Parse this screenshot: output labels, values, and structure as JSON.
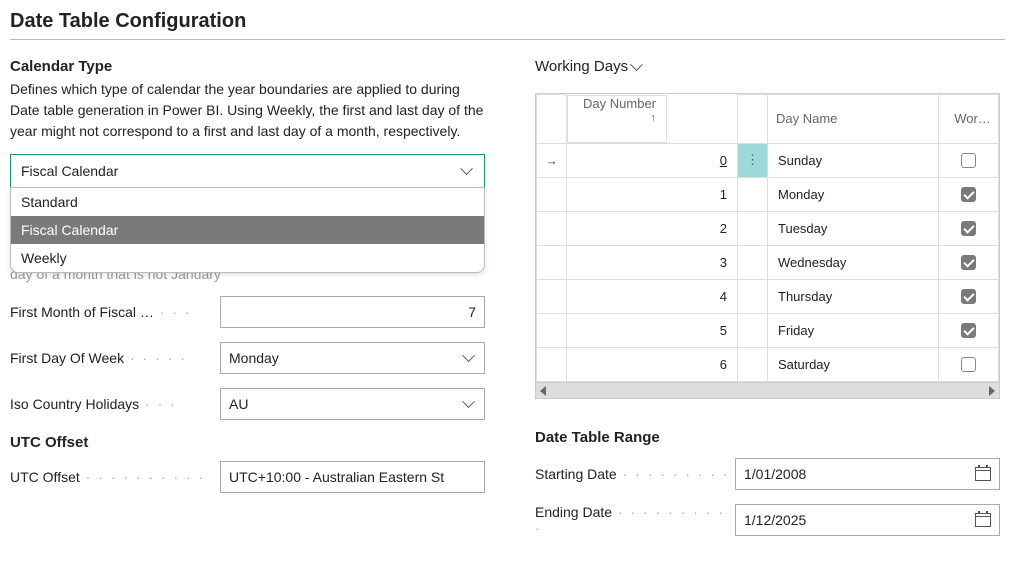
{
  "page_title": "Date Table Configuration",
  "calendar_type": {
    "heading": "Calendar Type",
    "description": "Defines which type of calendar the year boundaries are applied to during Date table generation in Power BI. Using Weekly, the first and last day of the year might not correspond to a first and last day of a month, respectively.",
    "selected": "Fiscal Calendar",
    "options": [
      "Standard",
      "Fiscal Calendar",
      "Weekly"
    ]
  },
  "obscured_text": "day of a month that is not January",
  "fields": {
    "first_month": {
      "label": "First Month of Fiscal …",
      "value": "7"
    },
    "first_day_of_week": {
      "label": "First Day Of Week",
      "value": "Monday"
    },
    "iso_country": {
      "label": "Iso Country Holidays",
      "value": "AU"
    }
  },
  "utc": {
    "heading": "UTC Offset",
    "label": "UTC Offset",
    "value": "UTC+10:00 - Australian Eastern St"
  },
  "working_days": {
    "heading": "Working Days",
    "columns": {
      "day_number": "Day Number",
      "day_name": "Day Name",
      "wor": "Wor…"
    },
    "rows": [
      {
        "num": "0",
        "name": "Sunday",
        "checked": false,
        "active": true
      },
      {
        "num": "1",
        "name": "Monday",
        "checked": true,
        "active": false
      },
      {
        "num": "2",
        "name": "Tuesday",
        "checked": true,
        "active": false
      },
      {
        "num": "3",
        "name": "Wednesday",
        "checked": true,
        "active": false
      },
      {
        "num": "4",
        "name": "Thursday",
        "checked": true,
        "active": false
      },
      {
        "num": "5",
        "name": "Friday",
        "checked": true,
        "active": false
      },
      {
        "num": "6",
        "name": "Saturday",
        "checked": false,
        "active": false
      }
    ]
  },
  "range": {
    "heading": "Date Table Range",
    "start": {
      "label": "Starting Date",
      "value": "1/01/2008"
    },
    "end": {
      "label": "Ending Date",
      "value": "1/12/2025"
    }
  }
}
